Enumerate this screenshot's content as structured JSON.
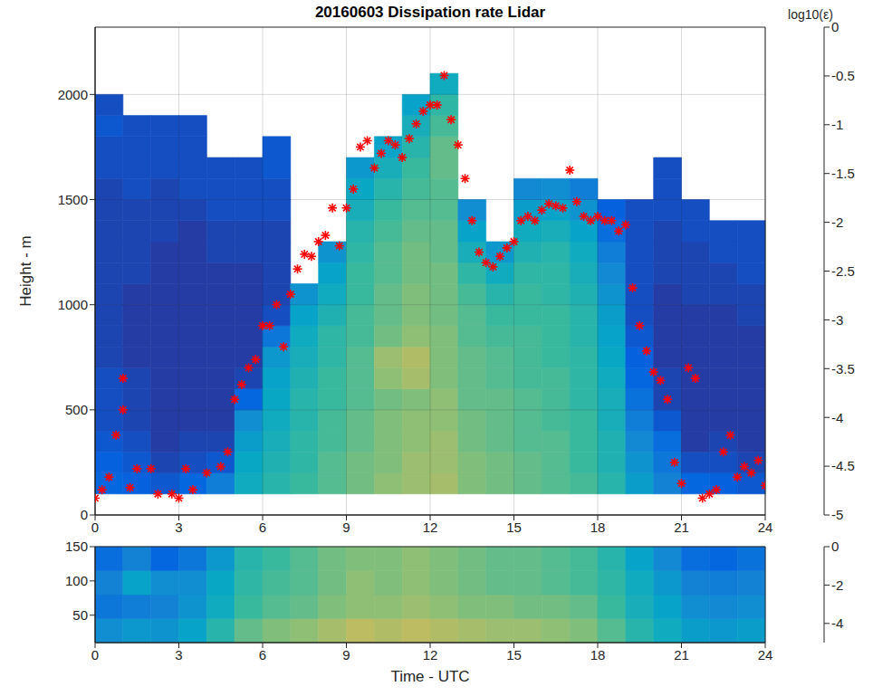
{
  "chart_data": [
    {
      "type": "heatmap",
      "title": "20160603 Dissipation rate Lidar",
      "y_label": "Height - m",
      "xlim": [
        0,
        24
      ],
      "xticks": [
        0,
        3,
        6,
        9,
        12,
        15,
        18,
        21,
        24
      ],
      "ylim": [
        0,
        2320
      ],
      "yticks": [
        0,
        500,
        1000,
        1500,
        2000
      ],
      "grid": true,
      "cells": {
        "x_edges": [
          0,
          1,
          2,
          3,
          4,
          5,
          6,
          7,
          8,
          9,
          10,
          11,
          12,
          13,
          14,
          15,
          16,
          17,
          18,
          19,
          20,
          21,
          22,
          23,
          24
        ],
        "y_edges": [
          100,
          200,
          300,
          400,
          500,
          600,
          700,
          800,
          900,
          1000,
          1100,
          1200,
          1300,
          1400,
          1500,
          1600,
          1700,
          1800,
          1900,
          2000,
          2100
        ],
        "values_by_time": [
          [
            -4.3,
            -4.4,
            -4.5,
            -4.6,
            -4.6,
            -4.6,
            -4.7,
            -4.7,
            -4.7,
            -4.7,
            -4.7,
            -4.7,
            -4.7,
            -4.7,
            -4.7,
            -4.6,
            -4.6,
            -4.5,
            -4.6,
            null
          ],
          [
            -4.4,
            -4.5,
            -4.6,
            -4.7,
            -4.7,
            -4.7,
            -4.8,
            -4.8,
            -4.8,
            -4.8,
            -4.7,
            -4.7,
            -4.7,
            -4.7,
            -4.6,
            -4.6,
            -4.6,
            -4.6,
            null,
            null
          ],
          [
            -4.5,
            -4.7,
            -4.8,
            -4.8,
            -4.8,
            -4.8,
            -4.8,
            -4.8,
            -4.8,
            -4.8,
            -4.8,
            -4.8,
            -4.7,
            -4.7,
            -4.7,
            -4.6,
            -4.6,
            -4.6,
            null,
            null
          ],
          [
            -4.3,
            -4.6,
            -4.7,
            -4.8,
            -4.8,
            -4.8,
            -4.8,
            -4.8,
            -4.8,
            -4.8,
            -4.8,
            -4.8,
            -4.8,
            -4.7,
            -4.6,
            -4.6,
            -4.6,
            -4.6,
            null,
            null
          ],
          [
            -3.9,
            -4.5,
            -4.7,
            -4.8,
            -4.8,
            -4.8,
            -4.8,
            -4.8,
            -4.8,
            -4.8,
            -4.8,
            -4.7,
            -4.7,
            -4.6,
            -4.6,
            -4.6,
            null,
            null,
            null,
            null
          ],
          [
            -3.0,
            -3.1,
            -3.3,
            -3.6,
            -4.3,
            -4.7,
            -4.8,
            -4.8,
            -4.8,
            -4.8,
            -4.8,
            -4.7,
            -4.7,
            -4.6,
            -4.6,
            -4.6,
            null,
            null,
            null,
            null
          ],
          [
            -2.7,
            -2.8,
            -2.9,
            -3.0,
            -3.1,
            -3.2,
            -3.4,
            -4.0,
            -4.6,
            -4.7,
            -4.7,
            -4.7,
            -4.7,
            -4.6,
            -4.6,
            -4.5,
            -4.5,
            null,
            null,
            null
          ],
          [
            -2.5,
            -2.6,
            -2.6,
            -2.7,
            -2.7,
            -2.8,
            -2.9,
            -3.0,
            -3.2,
            -3.5,
            null,
            null,
            null,
            null,
            null,
            null,
            null,
            null,
            null,
            null
          ],
          [
            -2.3,
            -2.3,
            -2.4,
            -2.4,
            -2.5,
            -2.5,
            -2.6,
            -2.6,
            -2.8,
            -3.0,
            -3.2,
            -3.5,
            null,
            null,
            null,
            null,
            null,
            null,
            null,
            null
          ],
          [
            -2.1,
            -2.1,
            -2.2,
            -2.2,
            -2.3,
            -2.3,
            -2.3,
            -2.4,
            -2.4,
            -2.5,
            -2.5,
            -2.6,
            -2.7,
            -2.9,
            -3.1,
            -3.4,
            null,
            null,
            null,
            null
          ],
          [
            -1.9,
            -2.0,
            -2.0,
            -2.0,
            -2.1,
            -1.9,
            -1.8,
            -2.1,
            -2.2,
            -2.2,
            -2.3,
            -2.3,
            -2.4,
            -2.5,
            -2.7,
            -2.9,
            -3.2,
            null,
            null,
            null
          ],
          [
            -1.8,
            -1.8,
            -1.9,
            -1.9,
            -2.0,
            -1.7,
            -1.6,
            -1.9,
            -2.0,
            -2.0,
            -2.1,
            -2.1,
            -2.2,
            -2.3,
            -2.4,
            -2.5,
            -2.7,
            -2.9,
            -3.2,
            null
          ],
          [
            -1.7,
            -1.8,
            -1.8,
            -1.9,
            -1.9,
            -2.0,
            -2.0,
            -2.0,
            -2.1,
            -2.1,
            -2.1,
            -2.2,
            -2.2,
            -2.3,
            -2.3,
            -2.2,
            -2.2,
            -2.4,
            -2.6,
            -3.0
          ],
          [
            -2.0,
            -2.0,
            -2.1,
            -2.1,
            -2.2,
            -2.2,
            -2.2,
            -2.3,
            -2.3,
            -2.4,
            -2.6,
            -2.9,
            -3.2,
            -3.6,
            null,
            null,
            null,
            null,
            null,
            null
          ],
          [
            -2.1,
            -2.1,
            -2.2,
            -2.2,
            -2.2,
            -2.3,
            -2.3,
            -2.4,
            -2.5,
            -2.7,
            -3.0,
            -3.4,
            null,
            null,
            null,
            null,
            null,
            null,
            null,
            null
          ],
          [
            -2.2,
            -2.2,
            -2.3,
            -2.3,
            -2.3,
            -2.4,
            -2.4,
            -2.4,
            -2.5,
            -2.5,
            -2.6,
            -2.8,
            -3.0,
            -3.3,
            -3.7,
            null,
            null,
            null,
            null,
            null
          ],
          [
            -2.3,
            -2.3,
            -2.3,
            -2.4,
            -2.4,
            -2.4,
            -2.5,
            -2.5,
            -2.5,
            -2.6,
            -2.6,
            -2.7,
            -2.9,
            -3.2,
            -3.6,
            null,
            null,
            null,
            null,
            null
          ],
          [
            -2.4,
            -2.5,
            -2.5,
            -2.5,
            -2.6,
            -2.6,
            -2.6,
            -2.7,
            -2.7,
            -2.8,
            -2.9,
            -3.0,
            -3.2,
            -3.5,
            -3.9,
            null,
            null,
            null,
            null,
            null
          ],
          [
            -2.7,
            -2.8,
            -2.8,
            -2.9,
            -2.9,
            -3.0,
            -3.1,
            -3.2,
            -3.3,
            -3.5,
            -3.7,
            -3.9,
            -4.2,
            -4.4,
            null,
            null,
            null,
            null,
            null,
            null
          ],
          [
            -3.3,
            -3.5,
            -3.7,
            -3.9,
            -4.1,
            -4.3,
            -4.4,
            -4.5,
            -4.6,
            -4.6,
            -4.6,
            -4.6,
            -4.6,
            -4.6,
            null,
            null,
            null,
            null,
            null,
            null
          ],
          [
            -3.8,
            -4.0,
            -4.2,
            -4.5,
            -4.7,
            -4.7,
            -4.8,
            -4.8,
            -4.8,
            -4.8,
            -4.7,
            -4.7,
            -4.7,
            -4.6,
            -4.6,
            -4.6,
            null,
            null,
            null,
            null
          ],
          [
            -4.3,
            -4.6,
            -4.8,
            -4.8,
            -4.8,
            -4.8,
            -4.8,
            -4.8,
            -4.8,
            -4.7,
            -4.7,
            -4.7,
            -4.6,
            -4.6,
            null,
            null,
            null,
            null,
            null,
            null
          ],
          [
            -4.4,
            -4.6,
            -4.7,
            -4.8,
            -4.8,
            -4.8,
            -4.8,
            -4.8,
            -4.8,
            -4.7,
            -4.7,
            -4.6,
            -4.6,
            null,
            null,
            null,
            null,
            null,
            null,
            null
          ],
          [
            -4.5,
            -4.7,
            -4.8,
            -4.8,
            -4.8,
            -4.8,
            -4.8,
            -4.8,
            -4.7,
            -4.7,
            -4.6,
            -4.6,
            -4.6,
            null,
            null,
            null,
            null,
            null,
            null,
            null
          ]
        ]
      },
      "colorbar": {
        "label": "log10(ε)",
        "range": [
          -5,
          0
        ],
        "ticks": [
          0,
          -0.5,
          -1,
          -1.5,
          -2,
          -2.5,
          -3,
          -3.5,
          -4,
          -4.5,
          -5
        ]
      },
      "series": [
        {
          "type": "scatter",
          "color": "#ff0000",
          "marker": "asterisk",
          "x": [
            0,
            0.25,
            0.5,
            0.75,
            1,
            1,
            1.25,
            1.5,
            2,
            2.25,
            2.75,
            3,
            3.25,
            3.5,
            4,
            4.5,
            4.75,
            5,
            5.25,
            5.5,
            5.75,
            6,
            6.25,
            6.5,
            6.75,
            7,
            7.25,
            7.5,
            7.75,
            8,
            8.25,
            8.5,
            8.75,
            9,
            9.25,
            9.5,
            9.75,
            10,
            10.25,
            10.5,
            10.75,
            11,
            11.25,
            11.5,
            11.75,
            12,
            12.25,
            12.5,
            12.75,
            13,
            13.25,
            13.5,
            13.75,
            14,
            14.25,
            14.5,
            14.75,
            15,
            15.25,
            15.5,
            15.75,
            16,
            16.25,
            16.5,
            16.75,
            17,
            17.25,
            17.5,
            17.75,
            18,
            18.25,
            18.5,
            18.75,
            19,
            19.25,
            19.5,
            19.75,
            20,
            20.25,
            20.5,
            20.75,
            21,
            21.25,
            21.5,
            21.75,
            22,
            22.25,
            22.5,
            22.75,
            23,
            23.25,
            23.5,
            23.75,
            24
          ],
          "values": [
            80,
            120,
            180,
            380,
            500,
            650,
            130,
            220,
            220,
            100,
            100,
            80,
            220,
            120,
            200,
            230,
            300,
            550,
            620,
            700,
            740,
            900,
            900,
            1000,
            800,
            1050,
            1170,
            1240,
            1230,
            1300,
            1330,
            1460,
            1280,
            1460,
            1550,
            1750,
            1780,
            1650,
            1720,
            1780,
            1760,
            1700,
            1790,
            1860,
            1920,
            1950,
            1950,
            2090,
            1880,
            1760,
            1600,
            1400,
            1250,
            1200,
            1180,
            1230,
            1270,
            1300,
            1400,
            1420,
            1400,
            1450,
            1480,
            1470,
            1460,
            1640,
            1490,
            1420,
            1400,
            1420,
            1400,
            1400,
            1350,
            1380,
            1080,
            900,
            780,
            680,
            640,
            550,
            250,
            150,
            700,
            650,
            80,
            100,
            120,
            300,
            380,
            180,
            230,
            200,
            260,
            140
          ]
        }
      ]
    },
    {
      "type": "heatmap",
      "x_label": "Time - UTC",
      "xlim": [
        0,
        24
      ],
      "xticks": [
        0,
        3,
        6,
        9,
        12,
        15,
        18,
        21,
        24
      ],
      "ylim": [
        10,
        150
      ],
      "yticks": [
        50,
        100,
        150
      ],
      "cells": {
        "x_edges": [
          0,
          1,
          2,
          3,
          4,
          5,
          6,
          7,
          8,
          9,
          10,
          11,
          12,
          13,
          14,
          15,
          16,
          17,
          18,
          19,
          20,
          21,
          22,
          23,
          24
        ],
        "y_edges": [
          10,
          45,
          80,
          115,
          150
        ],
        "values_by_time": [
          [
            -3.6,
            -4.0,
            -3.8,
            -4.2
          ],
          [
            -3.4,
            -3.9,
            -3.2,
            -3.8
          ],
          [
            -3.5,
            -3.8,
            -3.6,
            -4.3
          ],
          [
            -3.2,
            -3.5,
            -3.6,
            -4.0
          ],
          [
            -2.7,
            -3.0,
            -3.1,
            -3.4
          ],
          [
            -2.2,
            -2.5,
            -2.6,
            -2.7
          ],
          [
            -2.0,
            -2.3,
            -2.4,
            -2.5
          ],
          [
            -1.9,
            -2.2,
            -2.3,
            -2.3
          ],
          [
            -1.7,
            -2.0,
            -2.1,
            -2.1
          ],
          [
            -1.5,
            -1.9,
            -1.9,
            -2.0
          ],
          [
            -1.6,
            -1.9,
            -2.0,
            -2.0
          ],
          [
            -1.5,
            -1.8,
            -1.9,
            -1.9
          ],
          [
            -1.6,
            -1.9,
            -2.0,
            -2.0
          ],
          [
            -1.7,
            -2.0,
            -2.1,
            -2.1
          ],
          [
            -1.8,
            -2.0,
            -2.2,
            -2.2
          ],
          [
            -1.8,
            -2.1,
            -2.2,
            -2.2
          ],
          [
            -1.9,
            -2.1,
            -2.3,
            -2.3
          ],
          [
            -2.0,
            -2.2,
            -2.4,
            -2.4
          ],
          [
            -2.3,
            -2.5,
            -2.6,
            -2.7
          ],
          [
            -2.7,
            -2.9,
            -3.0,
            -3.2
          ],
          [
            -3.0,
            -3.2,
            -3.4,
            -3.7
          ],
          [
            -3.3,
            -3.6,
            -3.8,
            -4.2
          ],
          [
            -3.4,
            -3.7,
            -3.9,
            -4.3
          ],
          [
            -3.3,
            -3.6,
            -3.8,
            -4.1
          ]
        ]
      },
      "colorbar": {
        "range": [
          -5,
          0
        ],
        "ticks": [
          0,
          -2,
          -4
        ]
      }
    }
  ]
}
